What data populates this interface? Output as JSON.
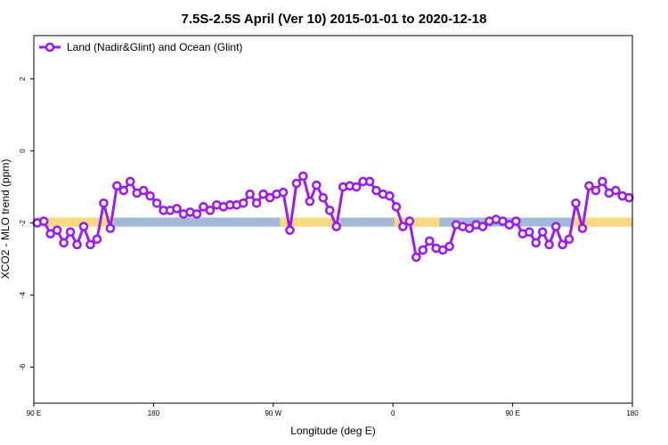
{
  "chart_data": {
    "type": "line",
    "title": "7.5S-2.5S April (Ver 10)   2015-01-01 to 2020-12-18",
    "xlabel": "Longitude (deg E)",
    "ylabel": "XCO2 - MLO trend (ppm)",
    "xlim": [
      90,
      540
    ],
    "ylim": [
      -7,
      3.2
    ],
    "x_ticks": [
      {
        "value": 90,
        "label": "90 E"
      },
      {
        "value": 180,
        "label": "180"
      },
      {
        "value": 270,
        "label": "90 W"
      },
      {
        "value": 360,
        "label": "0"
      },
      {
        "value": 450,
        "label": "90 E"
      },
      {
        "value": 540,
        "label": "180"
      }
    ],
    "y_ticks": [
      {
        "value": 2,
        "label": "2"
      },
      {
        "value": 0,
        "label": "0"
      },
      {
        "value": -2,
        "label": "-2"
      },
      {
        "value": -4,
        "label": "-4"
      },
      {
        "value": -6,
        "label": "-6"
      }
    ],
    "legend": {
      "position": "top-left",
      "label": "Land (Nadir&Glint) and Ocean (Glint)"
    },
    "series": [
      {
        "name": "Land (Nadir&Glint) and Ocean (Glint)",
        "color": "#9b1fe8",
        "x": [
          92.5,
          97.5,
          102.5,
          107.5,
          112.5,
          117.5,
          122.5,
          127.5,
          132.5,
          137.5,
          142.5,
          147.5,
          152.5,
          157.5,
          162.5,
          167.5,
          172.5,
          177.5,
          182.5,
          187.5,
          192.5,
          197.5,
          202.5,
          207.5,
          212.5,
          217.5,
          222.5,
          227.5,
          232.5,
          237.5,
          242.5,
          247.5,
          252.5,
          257.5,
          262.5,
          267.5,
          272.5,
          277.5,
          282.5,
          287.5,
          292.5,
          297.5,
          302.5,
          307.5,
          312.5,
          317.5,
          322.5,
          327.5,
          332.5,
          337.5,
          342.5,
          347.5,
          352.5,
          357.5,
          362.5,
          367.5,
          372.5,
          377.5,
          382.5,
          387.5,
          392.5,
          397.5,
          402.5,
          407.5,
          412.5,
          417.5,
          422.5,
          427.5,
          432.5,
          437.5,
          442.5,
          447.5,
          452.5,
          457.5,
          462.5,
          467.5,
          472.5,
          477.5,
          482.5,
          487.5,
          492.5,
          497.5,
          502.5,
          507.5,
          512.5,
          517.5,
          522.5,
          527.5,
          532.5,
          537.5
        ],
        "y": [
          -2.0,
          -1.95,
          -2.3,
          -2.2,
          -2.55,
          -2.25,
          -2.6,
          -2.1,
          -2.6,
          -2.45,
          -1.45,
          -2.15,
          -0.97,
          -1.1,
          -0.85,
          -1.17,
          -1.1,
          -1.25,
          -1.45,
          -1.65,
          -1.65,
          -1.6,
          -1.75,
          -1.7,
          -1.75,
          -1.55,
          -1.65,
          -1.5,
          -1.55,
          -1.5,
          -1.5,
          -1.45,
          -1.2,
          -1.45,
          -1.2,
          -1.3,
          -1.2,
          -1.15,
          -2.2,
          -0.9,
          -0.7,
          -1.4,
          -0.95,
          -1.3,
          -1.65,
          -2.1,
          -1.0,
          -0.97,
          -1.0,
          -0.85,
          -0.85,
          -1.1,
          -1.2,
          -1.25,
          -1.55,
          -2.1,
          -1.95,
          -2.95,
          -2.75,
          -2.5,
          -2.7,
          -2.75,
          -2.65,
          -2.05,
          -2.1,
          -2.15,
          -2.05,
          -2.1,
          -1.95,
          -1.9,
          -1.95,
          -2.05,
          -1.95,
          -2.3,
          -2.25,
          -2.55,
          -2.25,
          -2.6,
          -2.1,
          -2.6,
          -2.45,
          -1.45,
          -2.15,
          -0.97,
          -1.1,
          -0.85,
          -1.17,
          -1.1,
          -1.25,
          -1.3
        ]
      }
    ],
    "surface_band": {
      "y_range": [
        -2.1,
        -1.85
      ],
      "ocean_color": "#a2b9d9",
      "land_color": "#fbd980",
      "land_ranges": [
        [
          95,
          150
        ],
        [
          275,
          320
        ],
        [
          361,
          395
        ],
        [
          495,
          540
        ]
      ]
    }
  }
}
